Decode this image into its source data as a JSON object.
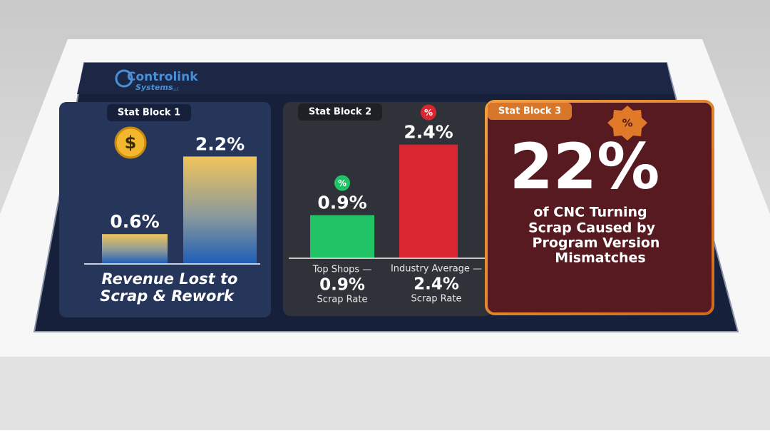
{
  "logo": {
    "name": "Controlink",
    "tagline": "Systems",
    "suffix": "LLC"
  },
  "blocks": [
    {
      "title": "Stat Block 1",
      "icon": "$",
      "bars": {
        "values": [
          0.6,
          2.2
        ],
        "value_labels": [
          "0.6%",
          "2.2%"
        ]
      },
      "caption": [
        "Revenue Lost to",
        "Scrap & Rework"
      ]
    },
    {
      "title": "Stat Block 2",
      "bars": {
        "values": [
          0.9,
          2.4
        ],
        "value_labels": [
          "0.9%",
          "2.4%"
        ],
        "icons": [
          "%",
          "%"
        ],
        "colors": [
          "#20c466",
          "#d9262f"
        ]
      },
      "legend": [
        {
          "label": "Top Shops —",
          "value": "0.9%",
          "sub": "Scrap Rate"
        },
        {
          "label": "Industry Average —",
          "value": "2.4%",
          "sub": "Scrap Rate"
        }
      ]
    },
    {
      "title": "Stat Block 3",
      "icon": "%",
      "headline": "22%",
      "text": [
        "of CNC Turning",
        "Scrap Caused by",
        "Program Version",
        "Mismatches"
      ]
    }
  ]
}
